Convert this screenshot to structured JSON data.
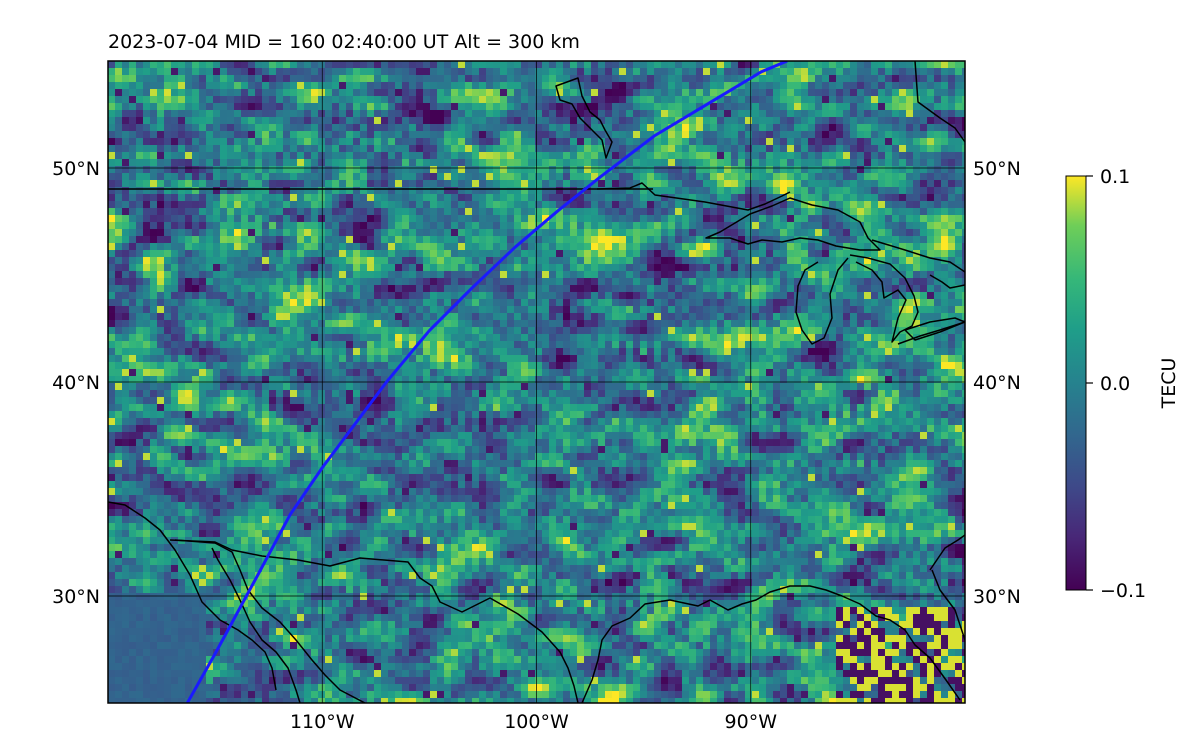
{
  "figure": {
    "title": "2023-07-04  MID = 160    02:40:00  UT  Alt = 300 km"
  },
  "map": {
    "lon_range": [
      -120,
      -80
    ],
    "lat_range": [
      25,
      55
    ],
    "lon_ticks": [
      {
        "value": -110,
        "label": "110°W"
      },
      {
        "value": -100,
        "label": "100°W"
      },
      {
        "value": -90,
        "label": "90°W"
      }
    ],
    "lat_ticks": [
      {
        "value": 30,
        "label": "30°N"
      },
      {
        "value": 40,
        "label": "40°N"
      },
      {
        "value": 50,
        "label": "50°N"
      }
    ],
    "grid": true,
    "field_description_colors": {
      "background_mean": "#2b7d8e"
    },
    "track": {
      "color": "#1a1aff",
      "points": [
        [
          -116.3,
          25.0
        ],
        [
          -115.0,
          27.3
        ],
        [
          -113.0,
          31.0
        ],
        [
          -111.5,
          33.8
        ],
        [
          -110.0,
          36.0
        ],
        [
          -108.5,
          38.0
        ],
        [
          -107.0,
          40.0
        ],
        [
          -105.0,
          42.4
        ],
        [
          -103.0,
          44.4
        ],
        [
          -101.0,
          46.3
        ],
        [
          -99.0,
          48.0
        ],
        [
          -97.0,
          49.6
        ],
        [
          -94.5,
          51.5
        ],
        [
          -92.0,
          53.0
        ],
        [
          -89.5,
          54.5
        ],
        [
          -88.3,
          55.0
        ]
      ]
    }
  },
  "colorbar": {
    "label": "TECU",
    "vmin": -0.1,
    "vmax": 0.1,
    "ticks": [
      {
        "value": 0.1,
        "label": "0.1"
      },
      {
        "value": 0.0,
        "label": "0.0"
      },
      {
        "value": -0.1,
        "label": "−0.1"
      }
    ],
    "colormap": "viridis"
  }
}
